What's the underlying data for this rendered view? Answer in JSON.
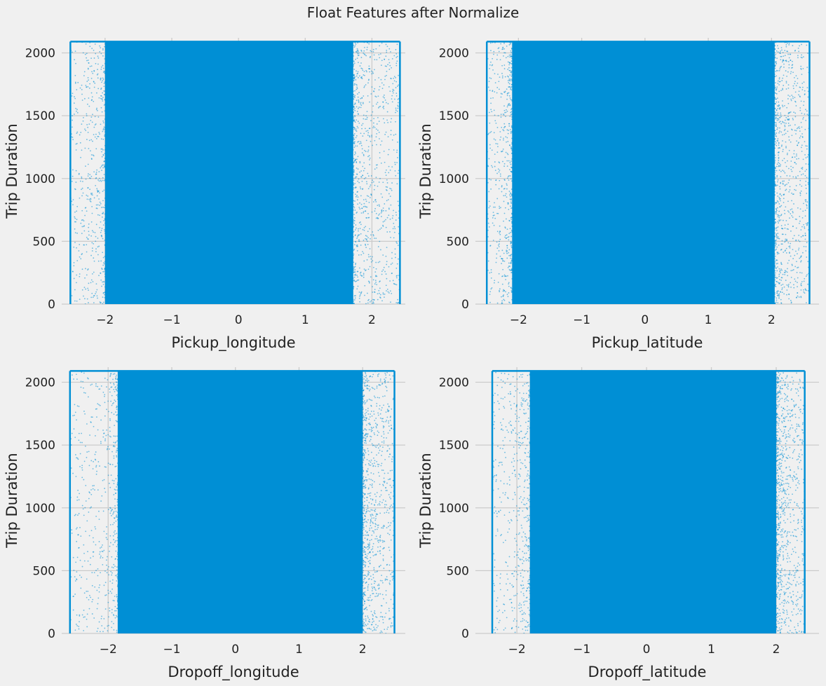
{
  "figure": {
    "title": "Float Features after Normalize",
    "background": "#f0f0f0",
    "marker_color": "#008fd5",
    "grid_color": "#cbcbcb"
  },
  "chart_data": [
    {
      "type": "scatter",
      "title": "",
      "xlabel": "Pickup_longitude",
      "ylabel": "Trip Duration",
      "xlim": [
        -2.65,
        2.5
      ],
      "ylim": [
        0,
        2120
      ],
      "xticks": [
        -2,
        -1,
        0,
        1,
        2
      ],
      "yticks": [
        0,
        500,
        1000,
        1500,
        2000
      ],
      "grid": true,
      "clip_bounds": {
        "x": [
          -2.52,
          2.42
        ],
        "y": [
          0,
          2090
        ]
      },
      "dense_x_range": [
        -2.0,
        1.72
      ],
      "dense_y_range": [
        0,
        2090
      ]
    },
    {
      "type": "scatter",
      "title": "",
      "xlabel": "Pickup_latitude",
      "ylabel": "Trip Duration",
      "xlim": [
        -2.68,
        2.75
      ],
      "ylim": [
        0,
        2120
      ],
      "xticks": [
        -2,
        -1,
        0,
        1,
        2
      ],
      "yticks": [
        0,
        500,
        1000,
        1500,
        2000
      ],
      "grid": true,
      "clip_bounds": {
        "x": [
          -2.5,
          2.6
        ],
        "y": [
          0,
          2090
        ]
      },
      "dense_x_range": [
        -2.1,
        2.05
      ],
      "dense_y_range": [
        0,
        2090
      ]
    },
    {
      "type": "scatter",
      "title": "",
      "xlabel": "Dropoff_longitude",
      "ylabel": "Trip Duration",
      "xlim": [
        -2.73,
        2.67
      ],
      "ylim": [
        0,
        2120
      ],
      "xticks": [
        -2,
        -1,
        0,
        1,
        2
      ],
      "yticks": [
        0,
        500,
        1000,
        1500,
        2000
      ],
      "grid": true,
      "clip_bounds": {
        "x": [
          -2.6,
          2.5
        ],
        "y": [
          0,
          2090
        ]
      },
      "dense_x_range": [
        -1.85,
        2.0
      ],
      "dense_y_range": [
        0,
        2090
      ]
    },
    {
      "type": "scatter",
      "title": "",
      "xlabel": "Dropoff_latitude",
      "ylabel": "Trip Duration",
      "xlim": [
        -2.64,
        2.66
      ],
      "ylim": [
        0,
        2120
      ],
      "xticks": [
        -2,
        -1,
        0,
        1,
        2
      ],
      "yticks": [
        0,
        500,
        1000,
        1500,
        2000
      ],
      "grid": true,
      "clip_bounds": {
        "x": [
          -2.38,
          2.44
        ],
        "y": [
          0,
          2090
        ]
      },
      "dense_x_range": [
        -1.8,
        2.0
      ],
      "dense_y_range": [
        0,
        2090
      ]
    }
  ]
}
